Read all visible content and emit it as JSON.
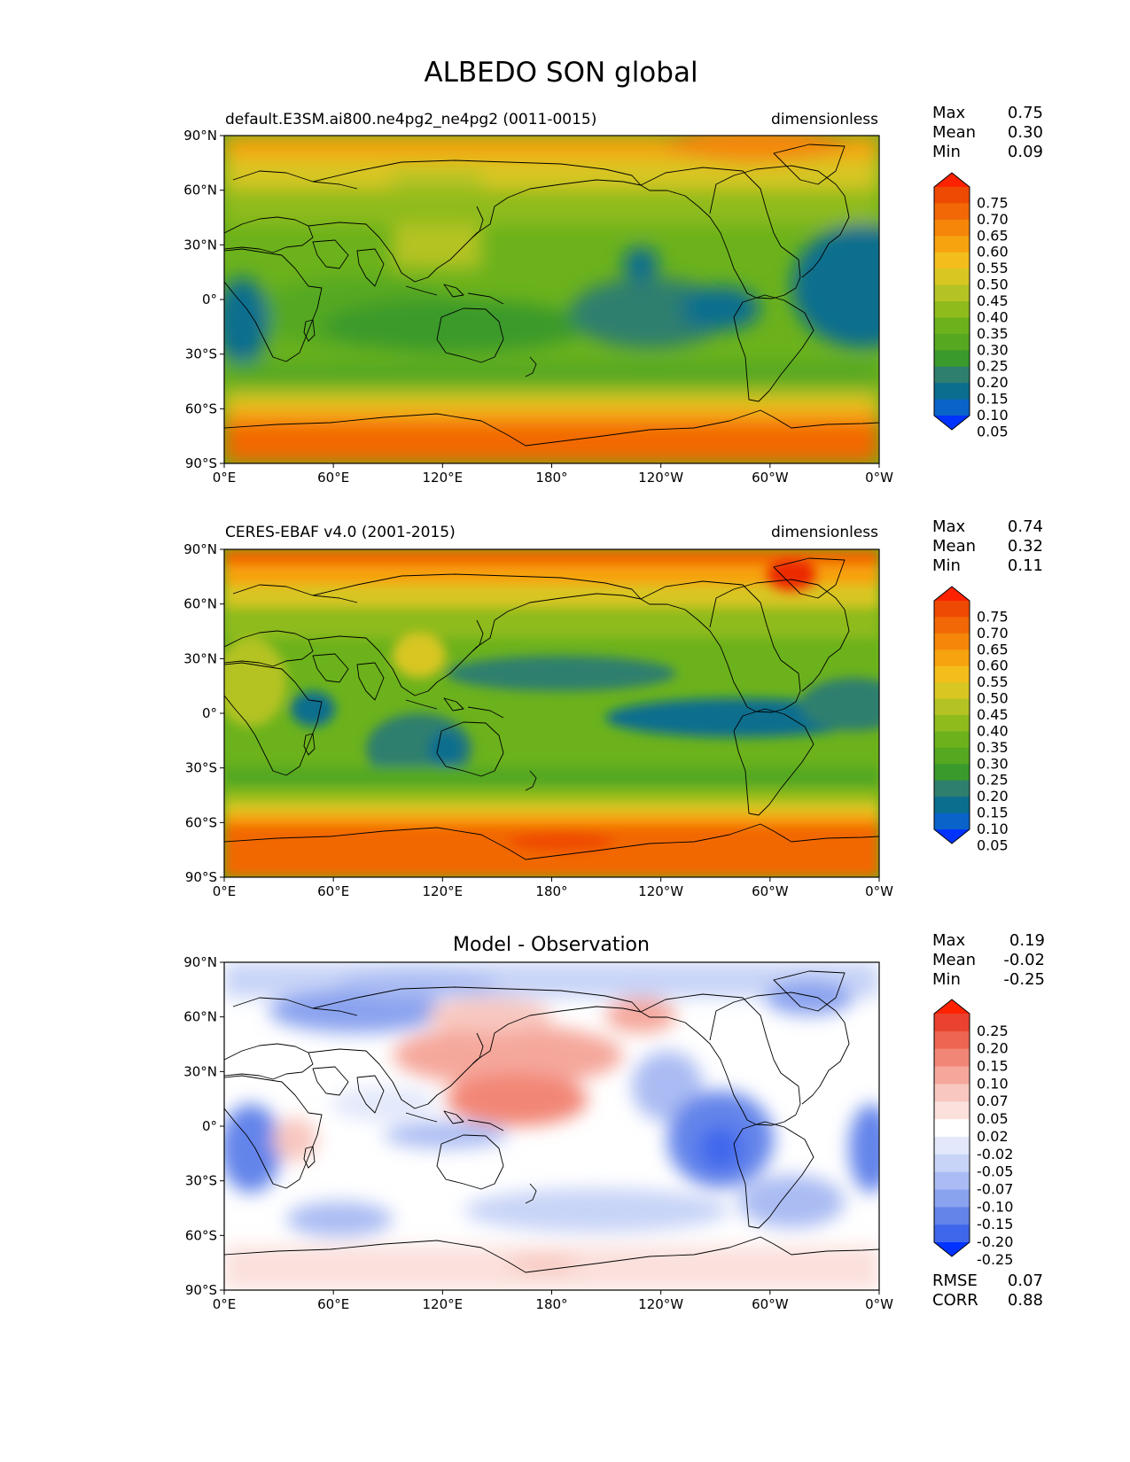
{
  "title": "ALBEDO SON global",
  "lat_ticks": [
    "90°N",
    "60°N",
    "30°N",
    "0°",
    "30°S",
    "60°S",
    "90°S"
  ],
  "lon_ticks": [
    "0°E",
    "60°E",
    "120°E",
    "180°",
    "120°W",
    "60°W",
    "0°W"
  ],
  "stat_labels": {
    "max": "Max",
    "mean": "Mean",
    "min": "Min",
    "rmse": "RMSE",
    "corr": "CORR"
  },
  "panels": [
    {
      "left_title": "default.E3SM.ai800.ne4pg2_ne4pg2 (0011-0015)",
      "center_title": "",
      "units": "dimensionless",
      "stats": {
        "max": "0.75",
        "mean": "0.30",
        "min": "0.09"
      },
      "colorbar_levels": [
        "0.05",
        "0.10",
        "0.15",
        "0.20",
        "0.25",
        "0.30",
        "0.35",
        "0.40",
        "0.45",
        "0.50",
        "0.55",
        "0.60",
        "0.65",
        "0.70",
        "0.75"
      ],
      "colorbar_colors": [
        "#0a3cf0",
        "#0a63c8",
        "#0b6e8e",
        "#2f7f6e",
        "#3a9a2c",
        "#55a820",
        "#6cb21c",
        "#8fbb1c",
        "#b4c323",
        "#d8c622",
        "#f3be1c",
        "#f7a20f",
        "#f58609",
        "#f26806",
        "#ef4a03",
        "#ec2c00"
      ],
      "pole_colors": {
        "under": "#0033ff",
        "over": "#ff2200"
      }
    },
    {
      "left_title": "CERES-EBAF v4.0 (2001-2015)",
      "center_title": "",
      "units": "dimensionless",
      "stats": {
        "max": "0.74",
        "mean": "0.32",
        "min": "0.11"
      },
      "colorbar_levels": [
        "0.05",
        "0.10",
        "0.15",
        "0.20",
        "0.25",
        "0.30",
        "0.35",
        "0.40",
        "0.45",
        "0.50",
        "0.55",
        "0.60",
        "0.65",
        "0.70",
        "0.75"
      ],
      "colorbar_colors": [
        "#0a3cf0",
        "#0a63c8",
        "#0b6e8e",
        "#2f7f6e",
        "#3a9a2c",
        "#55a820",
        "#6cb21c",
        "#8fbb1c",
        "#b4c323",
        "#d8c622",
        "#f3be1c",
        "#f7a20f",
        "#f58609",
        "#f26806",
        "#ef4a03",
        "#ec2c00"
      ],
      "pole_colors": {
        "under": "#0033ff",
        "over": "#ff2200"
      }
    },
    {
      "left_title": "",
      "center_title": "Model - Observation",
      "units": "",
      "stats": {
        "max": "0.19",
        "mean": "-0.02",
        "min": "-0.25"
      },
      "extra_stats": {
        "rmse": "0.07",
        "corr": "0.88"
      },
      "colorbar_levels": [
        "-0.25",
        "-0.20",
        "-0.15",
        "-0.10",
        "-0.07",
        "-0.05",
        "-0.02",
        "0.02",
        "0.05",
        "0.07",
        "0.10",
        "0.15",
        "0.20",
        "0.25"
      ],
      "colorbar_colors": [
        "#1f4cf5",
        "#3f67ec",
        "#6484ea",
        "#8aa3ef",
        "#aabcf3",
        "#c8d4f7",
        "#e3e9fb",
        "#ffffff",
        "#fbe0dc",
        "#f8c7bf",
        "#f5a79b",
        "#f28676",
        "#ee6552",
        "#ea4230",
        "#e62210"
      ],
      "pole_colors": {
        "under": "#0033ff",
        "over": "#ff2200"
      }
    }
  ]
}
